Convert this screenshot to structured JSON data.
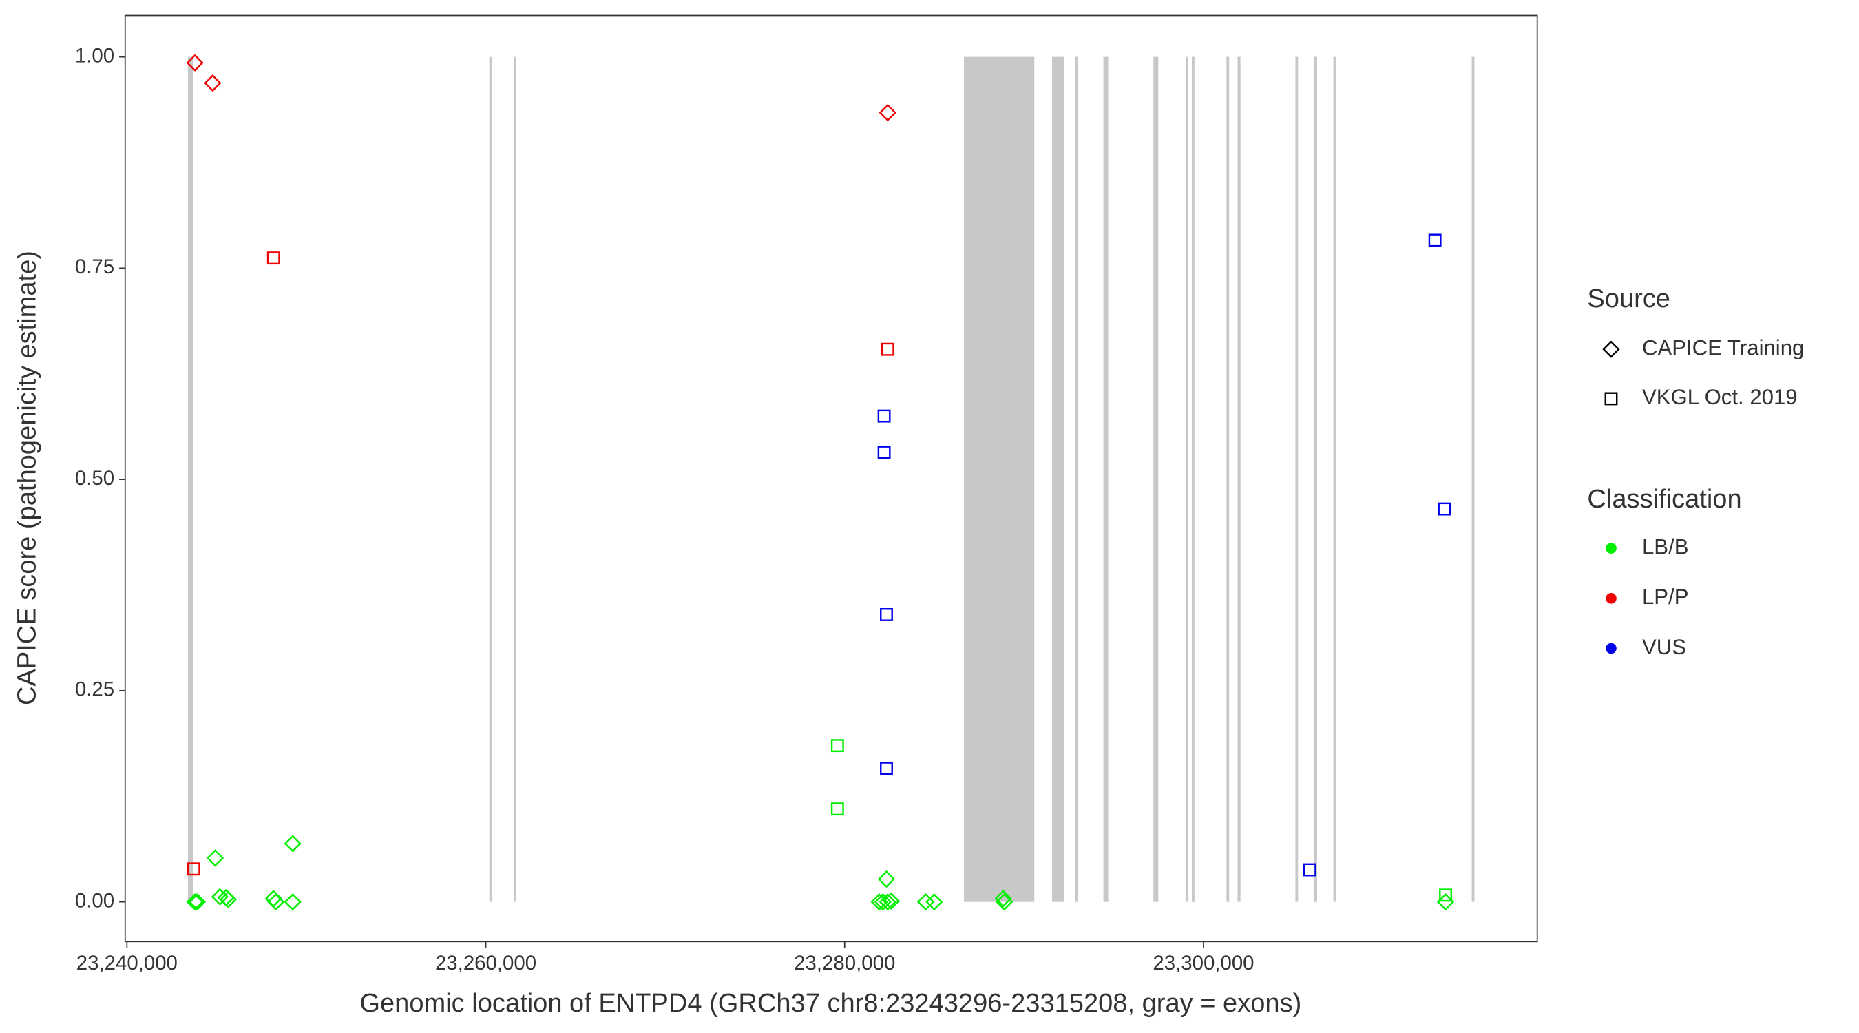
{
  "chart_data": {
    "type": "scatter",
    "x_label": "Genomic location of ENTPD4 (GRCh37 chr8:23243296-23315208, gray = exons)",
    "y_label": "CAPICE score (pathogenicity estimate)",
    "xlim": [
      23239900,
      23318600
    ],
    "ylim": [
      -0.047,
      1.049
    ],
    "xticks": [
      {
        "value": 23240000,
        "label": "23,240,000"
      },
      {
        "value": 23260000,
        "label": "23,260,000"
      },
      {
        "value": 23280000,
        "label": "23,280,000"
      },
      {
        "value": 23300000,
        "label": "23,300,000"
      }
    ],
    "yticks": [
      {
        "value": 0,
        "label": "0.00"
      },
      {
        "value": 0.25,
        "label": "0.25"
      },
      {
        "value": 0.5,
        "label": "0.50"
      },
      {
        "value": 0.75,
        "label": "0.75"
      },
      {
        "value": 1,
        "label": "1.00"
      }
    ],
    "grid": false,
    "exon_color": "#c8c8c8",
    "exons": [
      [
        23243400,
        23243700
      ],
      [
        23260200,
        23260350
      ],
      [
        23261550,
        23261700
      ],
      [
        23286650,
        23290570
      ],
      [
        23291560,
        23292230
      ],
      [
        23292850,
        23293000
      ],
      [
        23294420,
        23294690
      ],
      [
        23297210,
        23297480
      ],
      [
        23299000,
        23299150
      ],
      [
        23299350,
        23299500
      ],
      [
        23301280,
        23301430
      ],
      [
        23301900,
        23302060
      ],
      [
        23305120,
        23305270
      ],
      [
        23306180,
        23306330
      ],
      [
        23307240,
        23307390
      ],
      [
        23314950,
        23315100
      ]
    ],
    "legend": {
      "source": {
        "title": "Source",
        "entries": [
          "CAPICE Training",
          "VKGL Oct. 2019"
        ],
        "shapes": [
          "diamond",
          "square"
        ]
      },
      "classification": {
        "title": "Classification",
        "entries": [
          "LB/B",
          "LP/P",
          "VUS"
        ],
        "colors": [
          "#00ee00",
          "#ee0000",
          "#0000ee"
        ]
      }
    },
    "points": {
      "x": [
        23243790,
        23244780,
        23282400,
        23248170,
        23243720,
        23282400,
        23282200,
        23282200,
        23282330,
        23282330,
        23312900,
        23313430,
        23305920,
        23279600,
        23279600,
        23313490,
        23243790,
        23243920,
        23244920,
        23245180,
        23245520,
        23245650,
        23248170,
        23248300,
        23249240,
        23249240,
        23282330,
        23281930,
        23282130,
        23282400,
        23282600,
        23284520,
        23284990,
        23288840,
        23288900,
        23313490
      ],
      "y": [
        0.993,
        0.969,
        0.934,
        0.762,
        0.039,
        0.654,
        0.575,
        0.532,
        0.34,
        0.158,
        0.783,
        0.465,
        0.038,
        0.185,
        0.11,
        0.008,
        0,
        0,
        0.052,
        0.006,
        0.005,
        0.003,
        0.004,
        0,
        0.069,
        0,
        0.027,
        0,
        0,
        0,
        0.001,
        0,
        0,
        0.004,
        0,
        0
      ],
      "source": [
        0,
        0,
        0,
        1,
        1,
        1,
        1,
        1,
        1,
        1,
        1,
        1,
        1,
        1,
        1,
        1,
        0,
        0,
        0,
        0,
        0,
        0,
        0,
        0,
        0,
        0,
        0,
        0,
        0,
        0,
        0,
        0,
        0,
        0,
        0,
        0
      ],
      "classification": [
        1,
        1,
        1,
        1,
        1,
        1,
        2,
        2,
        2,
        2,
        2,
        2,
        2,
        0,
        0,
        0,
        0,
        0,
        0,
        0,
        0,
        0,
        0,
        0,
        0,
        0,
        0,
        0,
        0,
        0,
        0,
        0,
        0,
        0,
        0,
        0
      ]
    }
  }
}
